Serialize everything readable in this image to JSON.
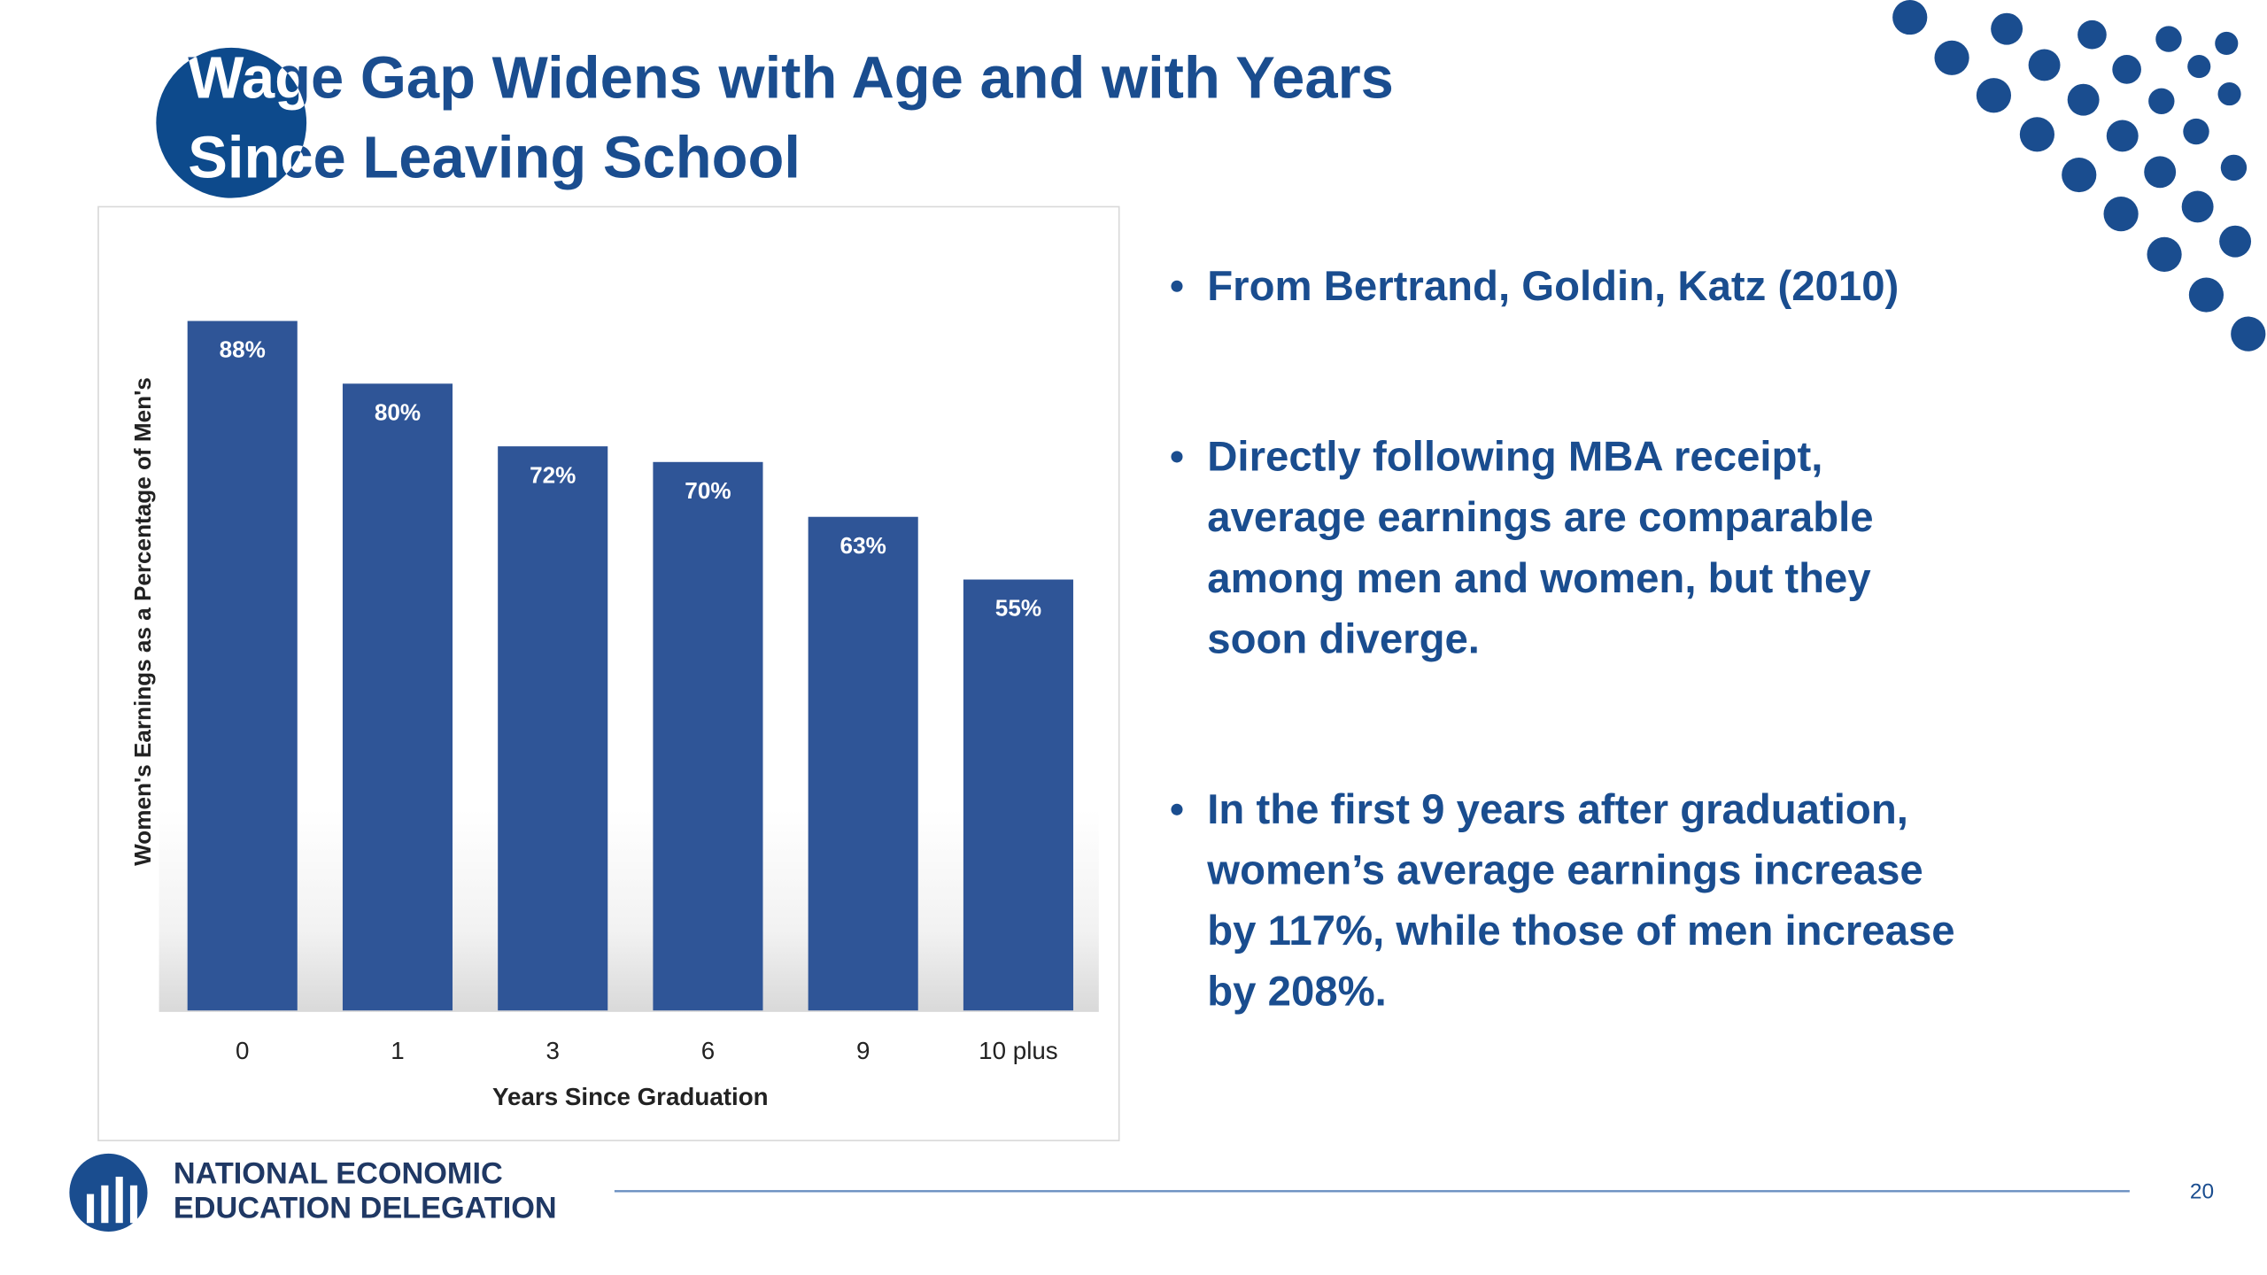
{
  "title": [
    "Wage Gap Widens with Age and with Years",
    "Since Leaving School"
  ],
  "bullets": [
    [
      "From Bertrand, Goldin, Katz (2010)"
    ],
    [
      "Directly following MBA  receipt,",
      "average earnings  are  comparable",
      "among men and women,  but  they",
      "soon  diverge."
    ],
    [
      "In the first 9 years after graduation,",
      "women’s average earnings increase",
      "by 117%, while those of men increase",
      "by 208%."
    ]
  ],
  "footer": {
    "logo": [
      "NATIONAL ECONOMIC",
      "EDUCATION DELEGATION"
    ],
    "page_number": "20"
  },
  "chart_data": {
    "type": "bar",
    "categories": [
      "0",
      "1",
      "3",
      "6",
      "9",
      "10 plus"
    ],
    "values": [
      88,
      80,
      72,
      70,
      63,
      55
    ],
    "value_labels": [
      "88%",
      "80%",
      "72%",
      "70%",
      "63%",
      "55%"
    ],
    "color": "#2f5597",
    "x_label": "Years Since Graduation",
    "y_label": "Women's Earnings as a Percentage of Men's",
    "ylim": [
      0,
      100
    ]
  }
}
